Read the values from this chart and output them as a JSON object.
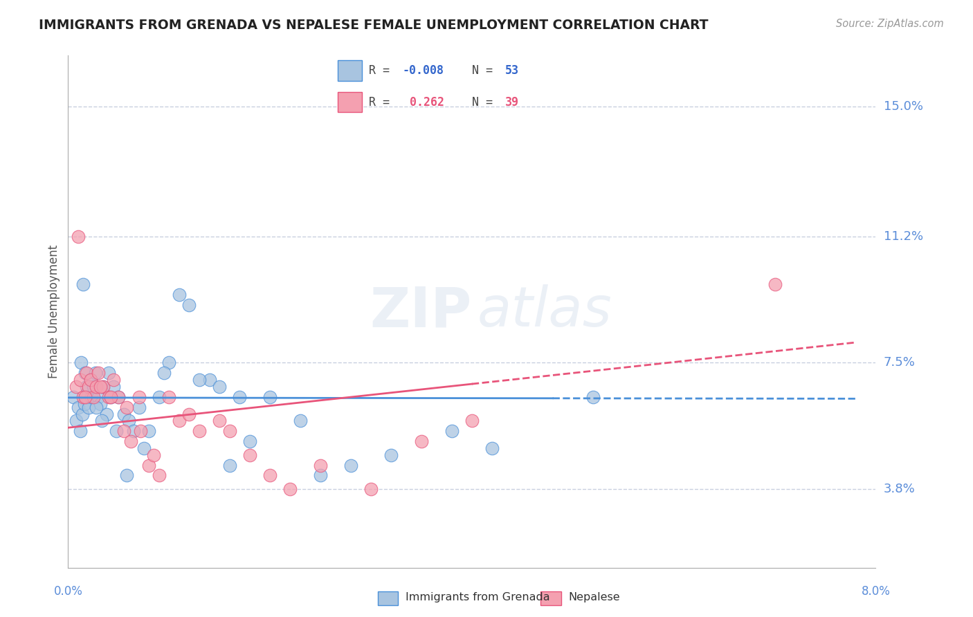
{
  "title": "IMMIGRANTS FROM GRENADA VS NEPALESE FEMALE UNEMPLOYMENT CORRELATION CHART",
  "source": "Source: ZipAtlas.com",
  "ylabel": "Female Unemployment",
  "ytick_labels": [
    "3.8%",
    "7.5%",
    "11.2%",
    "15.0%"
  ],
  "ytick_values": [
    3.8,
    7.5,
    11.2,
    15.0
  ],
  "xmin": 0.0,
  "xmax": 8.0,
  "ymin": 1.5,
  "ymax": 16.5,
  "blue_scatter_x": [
    0.05,
    0.08,
    0.1,
    0.12,
    0.13,
    0.14,
    0.15,
    0.16,
    0.17,
    0.18,
    0.19,
    0.2,
    0.22,
    0.23,
    0.25,
    0.27,
    0.3,
    0.32,
    0.35,
    0.38,
    0.4,
    0.42,
    0.45,
    0.5,
    0.55,
    0.6,
    0.65,
    0.7,
    0.75,
    0.8,
    0.9,
    1.0,
    1.1,
    1.2,
    1.4,
    1.5,
    1.6,
    1.8,
    2.0,
    2.3,
    2.5,
    2.8,
    3.2,
    3.8,
    4.2,
    5.2,
    1.3,
    0.28,
    0.33,
    0.48,
    0.58,
    0.95,
    1.7
  ],
  "blue_scatter_y": [
    6.5,
    5.8,
    6.2,
    5.5,
    7.5,
    6.0,
    9.8,
    6.3,
    7.2,
    6.8,
    6.5,
    6.2,
    7.0,
    6.5,
    6.8,
    7.2,
    6.5,
    6.3,
    6.8,
    6.0,
    7.2,
    6.5,
    6.8,
    6.5,
    6.0,
    5.8,
    5.5,
    6.2,
    5.0,
    5.5,
    6.5,
    7.5,
    9.5,
    9.2,
    7.0,
    6.8,
    4.5,
    5.2,
    6.5,
    5.8,
    4.2,
    4.5,
    4.8,
    5.5,
    5.0,
    6.5,
    7.0,
    6.2,
    5.8,
    5.5,
    4.2,
    7.2,
    6.5
  ],
  "pink_scatter_x": [
    0.08,
    0.12,
    0.15,
    0.18,
    0.2,
    0.22,
    0.25,
    0.28,
    0.3,
    0.35,
    0.4,
    0.45,
    0.5,
    0.55,
    0.62,
    0.7,
    0.8,
    0.9,
    1.0,
    1.1,
    1.3,
    1.5,
    1.8,
    2.0,
    2.5,
    3.0,
    3.5,
    4.0,
    0.1,
    0.17,
    0.32,
    0.42,
    0.58,
    0.72,
    0.85,
    1.2,
    1.6,
    2.2,
    7.0
  ],
  "pink_scatter_y": [
    6.8,
    7.0,
    6.5,
    7.2,
    6.8,
    7.0,
    6.5,
    6.8,
    7.2,
    6.8,
    6.5,
    7.0,
    6.5,
    5.5,
    5.2,
    6.5,
    4.5,
    4.2,
    6.5,
    5.8,
    5.5,
    5.8,
    4.8,
    4.2,
    4.5,
    3.8,
    5.2,
    5.8,
    11.2,
    6.5,
    6.8,
    6.5,
    6.2,
    5.5,
    4.8,
    6.0,
    5.5,
    3.8,
    9.8
  ],
  "blue_line_solid_end": 4.8,
  "blue_line_x_end": 7.8,
  "blue_line_y_start": 6.48,
  "blue_line_slope": -0.004,
  "pink_line_solid_end": 4.0,
  "pink_line_x_end": 7.8,
  "pink_line_y_start": 5.6,
  "pink_line_slope": 0.32,
  "blue_line_color": "#4a90d9",
  "pink_line_color": "#e8547a",
  "blue_scatter_color": "#a8c4e0",
  "pink_scatter_color": "#f4a0b0",
  "grid_color": "#c8d0e0",
  "watermark": "ZIPatlas",
  "background_color": "#ffffff",
  "title_color": "#222222",
  "axis_label_color": "#5b8dd9",
  "legend_r_color_blue": "#3366cc",
  "legend_r_color_pink": "#e8547a",
  "legend_n_color_blue": "#3366cc",
  "legend_n_color_pink": "#e8547a",
  "scatter_size": 180
}
